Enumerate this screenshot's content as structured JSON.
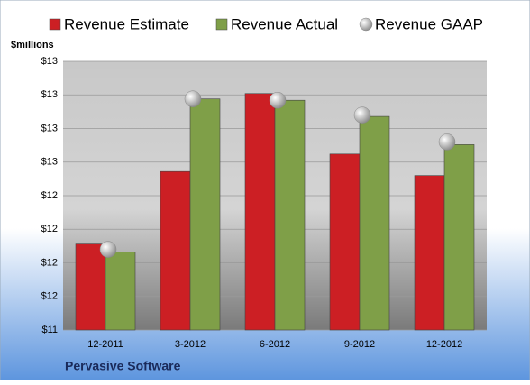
{
  "chart_data": {
    "type": "bar",
    "y_axis_label": "$millions",
    "footer": "Pervasive Software",
    "categories": [
      "12-2011",
      "3-2012",
      "6-2012",
      "9-2012",
      "12-2012"
    ],
    "series": [
      {
        "name": "Revenue Estimate",
        "color": "#cc1f24",
        "type": "bar",
        "values": [
          12.04,
          12.58,
          13.16,
          12.71,
          12.55
        ]
      },
      {
        "name": "Revenue Actual",
        "color": "#7f9f48",
        "type": "bar",
        "values": [
          11.98,
          13.12,
          13.11,
          12.99,
          12.78
        ]
      },
      {
        "name": "Revenue GAAP",
        "color": "#b8b8b8",
        "type": "scatter",
        "values": [
          12.0,
          13.12,
          13.11,
          13.0,
          12.8
        ]
      }
    ],
    "ylim": [
      11.4,
      13.4
    ],
    "yticks": [
      {
        "value": 11.4,
        "label": "$11"
      },
      {
        "value": 11.65,
        "label": "$12"
      },
      {
        "value": 11.9,
        "label": "$12"
      },
      {
        "value": 12.15,
        "label": "$12"
      },
      {
        "value": 12.4,
        "label": "$12"
      },
      {
        "value": 12.65,
        "label": "$13"
      },
      {
        "value": 12.9,
        "label": "$13"
      },
      {
        "value": 13.15,
        "label": "$13"
      },
      {
        "value": 13.4,
        "label": "$13"
      }
    ],
    "grid": true
  }
}
